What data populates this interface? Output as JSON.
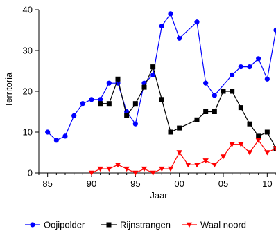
{
  "chart_data": {
    "type": "line",
    "xlabel": "Jaar",
    "ylabel": "Territoria",
    "xlim": [
      1984,
      2011
    ],
    "ylim": [
      0,
      40
    ],
    "x_tick_values": [
      1985,
      1990,
      1995,
      2000,
      2005,
      2010
    ],
    "x_tick_labels": [
      "85",
      "90",
      "95",
      "00",
      "05",
      "10"
    ],
    "y_ticks": [
      0,
      10,
      20,
      30,
      40
    ],
    "grid": false,
    "legend_position": "bottom",
    "series": [
      {
        "name": "Oojipolder",
        "color": "#0000ff",
        "marker": "circle",
        "x": [
          1985,
          1986,
          1987,
          1988,
          1989,
          1990,
          1991,
          1992,
          1993,
          1994,
          1995,
          1996,
          1997,
          1998,
          1999,
          2000,
          2002,
          2003,
          2004,
          2006,
          2007,
          2008,
          2009,
          2010,
          2011
        ],
        "y": [
          10,
          8,
          9,
          14,
          17,
          18,
          18,
          22,
          22,
          15,
          12,
          22,
          24,
          36,
          39,
          33,
          37,
          22,
          19,
          24,
          26,
          26,
          28,
          23,
          35
        ]
      },
      {
        "name": "Rijnstrangen",
        "color": "#000000",
        "marker": "square",
        "x": [
          1991,
          1992,
          1993,
          1994,
          1995,
          1996,
          1997,
          1998,
          1999,
          2000,
          2002,
          2003,
          2004,
          2005,
          2006,
          2007,
          2008,
          2009,
          2010,
          2011
        ],
        "y": [
          17,
          17,
          23,
          14,
          17,
          21,
          26,
          18,
          10,
          11,
          13,
          15,
          15,
          20,
          20,
          16,
          12,
          9,
          10,
          6
        ]
      },
      {
        "name": "Waal noord",
        "color": "#ff0000",
        "marker": "triangle-down",
        "x": [
          1990,
          1991,
          1992,
          1993,
          1994,
          1995,
          1996,
          1997,
          1998,
          1999,
          2000,
          2001,
          2002,
          2003,
          2004,
          2005,
          2006,
          2007,
          2008,
          2009,
          2010,
          2011
        ],
        "y": [
          0,
          1,
          1,
          2,
          1,
          0,
          1,
          0,
          1,
          1,
          5,
          2,
          2,
          3,
          2,
          4,
          7,
          7,
          5,
          8,
          5,
          6
        ]
      }
    ]
  }
}
